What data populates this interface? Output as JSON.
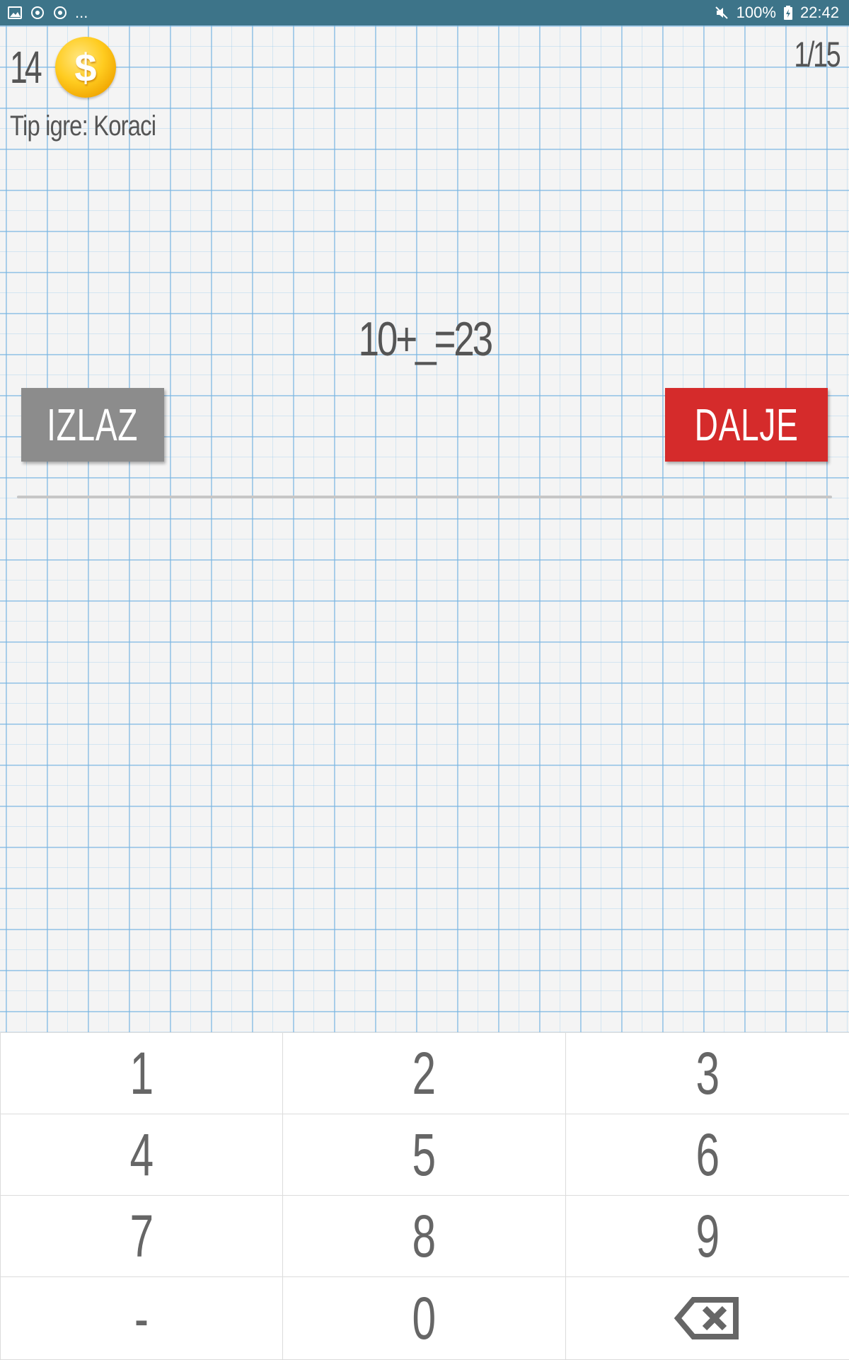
{
  "status_bar": {
    "battery": "100%",
    "time": "22:42",
    "notifications_more": "...",
    "icons": [
      "image-icon",
      "sync-icon",
      "sync-icon",
      "mute-icon",
      "battery-charging-icon"
    ]
  },
  "header": {
    "coins": "14",
    "coin_symbol": "$",
    "game_type": "Tip igre: Koraci",
    "progress": "1/15"
  },
  "equation": {
    "text": "10+_=23"
  },
  "buttons": {
    "exit_label": "IZLAZ",
    "next_label": "DALJE"
  },
  "keypad": {
    "keys": [
      "1",
      "2",
      "3",
      "4",
      "5",
      "6",
      "7",
      "8",
      "9",
      "-",
      "0"
    ]
  },
  "colors": {
    "status_bar": "#3d7489",
    "exit_button": "#8c8c8c",
    "next_button": "#d52b2b",
    "coin": "#ffcc20",
    "grid_lines": "#78b4e1"
  }
}
